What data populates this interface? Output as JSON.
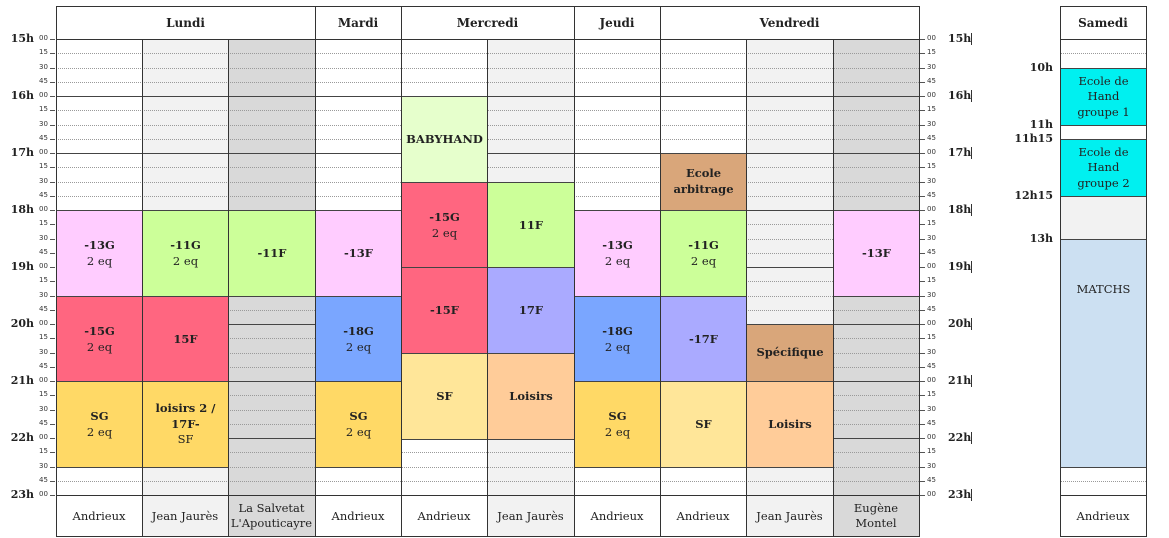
{
  "days": [
    {
      "id": "lundi",
      "label": "Lundi"
    },
    {
      "id": "mardi",
      "label": "Mardi"
    },
    {
      "id": "mercredi",
      "label": "Mercredi"
    },
    {
      "id": "jeudi",
      "label": "Jeudi"
    },
    {
      "id": "vendredi",
      "label": "Vendredi"
    }
  ],
  "saturday": {
    "label": "Samedi",
    "venue": "Andrieux",
    "time_labels": [
      "10h",
      "11h",
      "11h15",
      "12h15",
      "13h"
    ],
    "blocks": [
      {
        "id": "ecole-hand-1",
        "lines": [
          "Ecole de Hand",
          "groupe 1"
        ],
        "start": "10:00",
        "end": "11:00",
        "color": "#00f0f0"
      },
      {
        "id": "ecole-hand-2",
        "lines": [
          "Ecole de Hand",
          "groupe 2"
        ],
        "start": "11:15",
        "end": "12:15",
        "color": "#00f0f0"
      },
      {
        "id": "matchs",
        "lines": [
          "MATCHS"
        ],
        "start": "13:00",
        "end": "17:00",
        "color": "#cce0f2"
      }
    ]
  },
  "venues": [
    {
      "day": "lundi",
      "label": "Andrieux"
    },
    {
      "day": "lundi",
      "label": "Jean Jaurès"
    },
    {
      "day": "lundi",
      "label": "La Salvetat L'Apouticayre"
    },
    {
      "day": "mardi",
      "label": "Andrieux"
    },
    {
      "day": "mercredi",
      "label": "Andrieux"
    },
    {
      "day": "mercredi",
      "label": "Jean Jaurès"
    },
    {
      "day": "jeudi",
      "label": "Andrieux"
    },
    {
      "day": "vendredi",
      "label": "Andrieux"
    },
    {
      "day": "vendredi",
      "label": "Jean Jaurès"
    },
    {
      "day": "vendredi",
      "label": "Eugène Montel"
    }
  ],
  "hours": [
    "15h",
    "16h",
    "17h",
    "18h",
    "19h",
    "20h",
    "21h",
    "22h",
    "23h"
  ],
  "minutes": [
    "00",
    "15",
    "30",
    "45"
  ],
  "blocks": [
    {
      "col": 0,
      "start": "18:00",
      "end": "19:30",
      "lines": [
        "-13G",
        "2 eq"
      ],
      "color": "#ffccff"
    },
    {
      "col": 1,
      "start": "18:00",
      "end": "19:30",
      "lines": [
        "-11G",
        "2 eq"
      ],
      "color": "#ccff99"
    },
    {
      "col": 2,
      "start": "18:00",
      "end": "19:30",
      "lines": [
        "-11F"
      ],
      "color": "#ccff99"
    },
    {
      "col": 0,
      "start": "19:30",
      "end": "21:00",
      "lines": [
        "-15G",
        "2 eq"
      ],
      "color": "#ff6680"
    },
    {
      "col": 1,
      "start": "19:30",
      "end": "21:00",
      "lines": [
        "15F"
      ],
      "color": "#ff6680"
    },
    {
      "col": 0,
      "start": "21:00",
      "end": "22:30",
      "lines": [
        "SG",
        "2 eq"
      ],
      "color": "#ffd966"
    },
    {
      "col": 1,
      "start": "21:00",
      "end": "22:30",
      "lines": [
        "loisirs 2 / 17F-",
        "SF"
      ],
      "color": "#ffd966"
    },
    {
      "col": 3,
      "start": "18:00",
      "end": "19:30",
      "lines": [
        "-13F"
      ],
      "color": "#ffccff"
    },
    {
      "col": 3,
      "start": "19:30",
      "end": "21:00",
      "lines": [
        "-18G",
        "2 eq"
      ],
      "color": "#7aa6ff"
    },
    {
      "col": 3,
      "start": "21:00",
      "end": "22:30",
      "lines": [
        "SG",
        "2 eq"
      ],
      "color": "#ffd966"
    },
    {
      "col": 4,
      "start": "16:00",
      "end": "17:30",
      "lines": [
        "BABYHAND"
      ],
      "color": "#e6ffcc"
    },
    {
      "col": 4,
      "start": "17:30",
      "end": "19:00",
      "lines": [
        "-15G",
        "2 eq"
      ],
      "color": "#ff6680"
    },
    {
      "col": 5,
      "start": "17:30",
      "end": "19:00",
      "lines": [
        "11F"
      ],
      "color": "#ccff99"
    },
    {
      "col": 4,
      "start": "19:00",
      "end": "20:30",
      "lines": [
        "-15F"
      ],
      "color": "#ff6680"
    },
    {
      "col": 5,
      "start": "19:00",
      "end": "20:30",
      "lines": [
        "17F"
      ],
      "color": "#aaaaff"
    },
    {
      "col": 4,
      "start": "20:30",
      "end": "22:00",
      "lines": [
        "SF"
      ],
      "color": "#ffe699"
    },
    {
      "col": 5,
      "start": "20:30",
      "end": "22:00",
      "lines": [
        "Loisirs"
      ],
      "color": "#ffcc99"
    },
    {
      "col": 6,
      "start": "18:00",
      "end": "19:30",
      "lines": [
        "-13G",
        "2 eq"
      ],
      "color": "#ffccff"
    },
    {
      "col": 6,
      "start": "19:30",
      "end": "21:00",
      "lines": [
        "-18G",
        "2 eq"
      ],
      "color": "#7aa6ff"
    },
    {
      "col": 6,
      "start": "21:00",
      "end": "22:30",
      "lines": [
        "SG",
        "2 eq"
      ],
      "color": "#ffd966"
    },
    {
      "col": 7,
      "start": "17:00",
      "end": "18:00",
      "lines": [
        "Ecole arbitrage"
      ],
      "color": "#d9a67a"
    },
    {
      "col": 7,
      "start": "18:00",
      "end": "19:30",
      "lines": [
        "-11G",
        "2 eq"
      ],
      "color": "#ccff99"
    },
    {
      "col": 7,
      "start": "19:30",
      "end": "21:00",
      "lines": [
        "-17F"
      ],
      "color": "#aaaaff"
    },
    {
      "col": 7,
      "start": "21:00",
      "end": "22:30",
      "lines": [
        "SF"
      ],
      "color": "#ffe699"
    },
    {
      "col": 8,
      "start": "20:00",
      "end": "21:00",
      "lines": [
        "Spécifique"
      ],
      "color": "#d9a67a"
    },
    {
      "col": 8,
      "start": "21:00",
      "end": "22:30",
      "lines": [
        "Loisirs"
      ],
      "color": "#ffcc99"
    },
    {
      "col": 9,
      "start": "18:00",
      "end": "19:30",
      "lines": [
        "-13F"
      ],
      "color": "#ffccff"
    }
  ],
  "colors": {
    "pink": "#ffccff",
    "green": "#ccff99",
    "red": "#ff6680",
    "yellow": "#ffd966",
    "blue": "#7aa6ff",
    "purple": "#aaaaff",
    "pale_yellow": "#ffe699",
    "peach": "#ffcc99",
    "tan": "#d9a67a",
    "cyan": "#00f0f0",
    "light_blue": "#cce0f2",
    "light_grey": "#f2f2f2",
    "grey": "#d9d9d9"
  }
}
